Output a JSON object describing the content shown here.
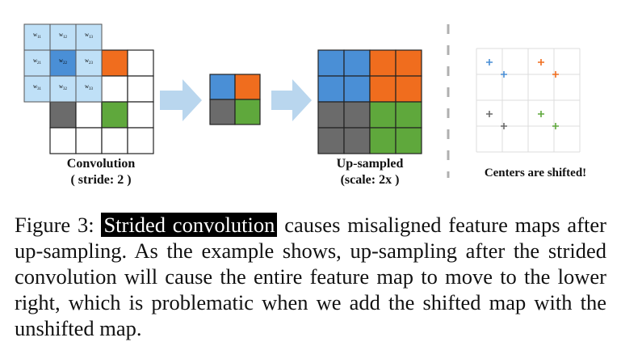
{
  "figure": {
    "conv_label_line1": "Convolution",
    "conv_label_line2": "( stride: 2 )",
    "up_label_line1": "Up-sampled",
    "up_label_line2": "(scale: 2x )",
    "centers_label": "Centers are shifted!",
    "kernel_labels": [
      "w11",
      "w12",
      "w13",
      "w21",
      "w22",
      "w23",
      "w31",
      "w32",
      "w33"
    ],
    "colors": {
      "blue": "#4a8fd6",
      "orange": "#f06d1e",
      "gray": "#6b6b6b",
      "green": "#5fa83c",
      "kernel_fill": "#bfe0f7",
      "kernel_center": "#4a8fd6",
      "arrow": "#b9d6ee"
    }
  },
  "caption": {
    "prefix": "Figure 3: ",
    "highlight": "Strided convolution",
    "text": " causes misaligned feature maps after up-sampling.  As the example shows, up-sampling after the strided convolution will cause the entire feature map to move to the lower right, which is problematic when we add the shifted map with the unshifted map."
  }
}
